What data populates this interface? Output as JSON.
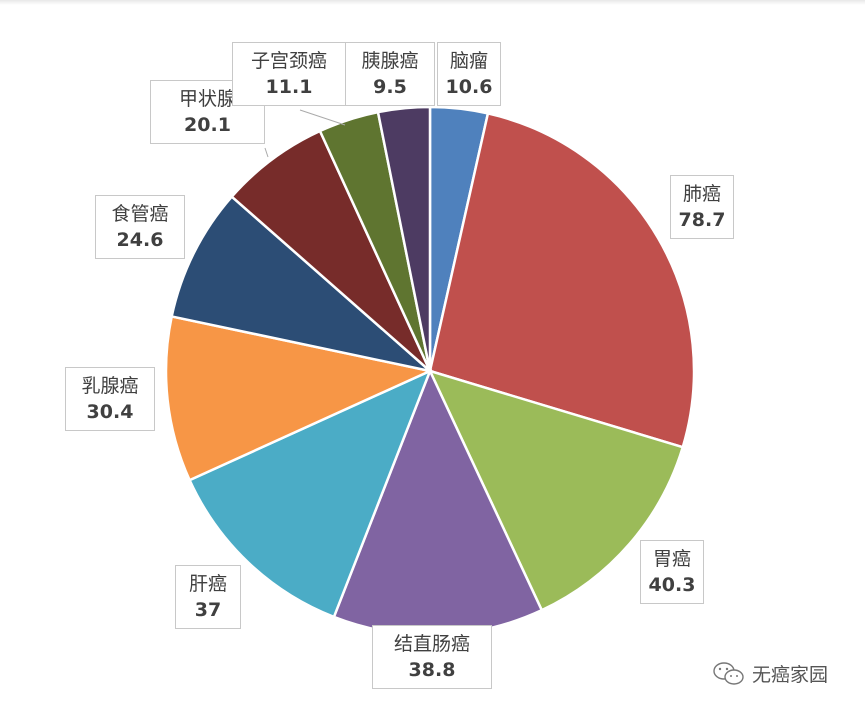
{
  "chart_data": {
    "type": "pie",
    "start": "12 o'clock",
    "direction": "clockwise",
    "categories": [
      "脑瘤",
      "肺癌",
      "胃癌",
      "结直肠癌",
      "肝癌",
      "乳腺癌",
      "食管癌",
      "甲状腺",
      "子宫颈癌",
      "胰腺癌"
    ],
    "values": [
      10.6,
      78.7,
      40.3,
      38.8,
      37,
      30.4,
      24.6,
      20.1,
      11.1,
      9.5
    ],
    "value_labels": [
      "10.6",
      "78.7",
      "40.3",
      "38.8",
      "37",
      "30.4",
      "24.6",
      "20.1",
      "11.1",
      "9.5"
    ],
    "colors": [
      "#4f81bd",
      "#c0504d",
      "#9bbb59",
      "#8064a2",
      "#4bacc6",
      "#f79646",
      "#2c4d75",
      "#772c2a",
      "#5f7530",
      "#4d3b62"
    ],
    "legend": "none"
  },
  "watermark": {
    "text": "无癌家园",
    "icon": "wechat-icon"
  }
}
